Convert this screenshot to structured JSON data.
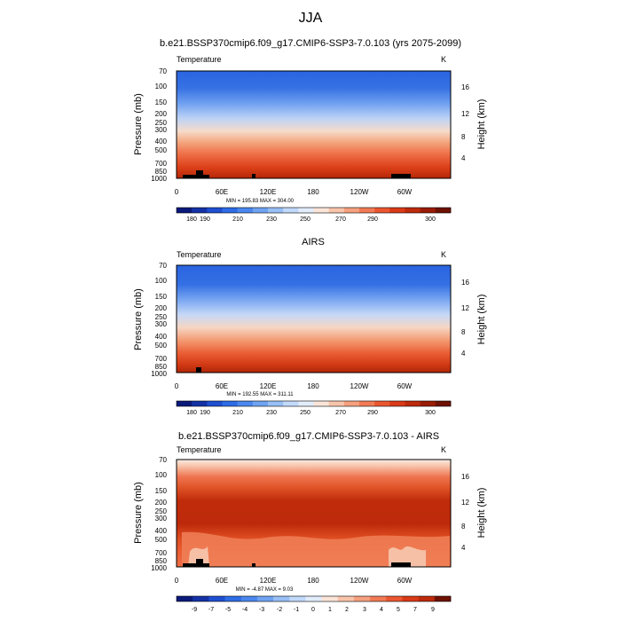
{
  "figure": {
    "title": "JJA"
  },
  "chart_data": [
    {
      "type": "heatmap",
      "title": "b.e21.BSSP370cmip6.f09_g17.CMIP6-SSP3-7.0.103 (yrs 2075-2099)",
      "left_string": "Temperature",
      "right_string": "K",
      "ylabel": "Pressure (mb)",
      "y2label": "Height (km)",
      "x_ticks": [
        "0",
        "60E",
        "120E",
        "180",
        "120W",
        "60W"
      ],
      "y_ticks": [
        "70",
        "100",
        "150",
        "200",
        "250",
        "300",
        "400",
        "500",
        "700",
        "850",
        "1000"
      ],
      "y2_ticks": [
        "16",
        "12",
        "8",
        "4"
      ],
      "stats": "MIN = 195.83   MAX = 304.00",
      "levels": [
        "180",
        "190",
        "210",
        "230",
        "250",
        "270",
        "290",
        "300"
      ],
      "colors": [
        "#0a1a7a",
        "#1432a6",
        "#1e4fd0",
        "#2d6ce6",
        "#4a87ee",
        "#6fa3f2",
        "#98bff6",
        "#c1d9fa",
        "#e2ecfb",
        "#fbe4d8",
        "#f8c4aa",
        "#f5a07e",
        "#f17a55",
        "#ea5630",
        "#d93a17",
        "#bd2a0c",
        "#9a1c05",
        "#6e1102"
      ],
      "field_min": 195.83,
      "field_max": 304.0
    },
    {
      "type": "heatmap",
      "title": "AIRS",
      "left_string": "Temperature",
      "right_string": "K",
      "ylabel": "Pressure (mb)",
      "y2label": "Height (km)",
      "x_ticks": [
        "0",
        "60E",
        "120E",
        "180",
        "120W",
        "60W"
      ],
      "y_ticks": [
        "70",
        "100",
        "150",
        "200",
        "250",
        "300",
        "400",
        "500",
        "700",
        "850",
        "1000"
      ],
      "y2_ticks": [
        "16",
        "12",
        "8",
        "4"
      ],
      "stats": "MIN = 192.55   MAX = 311.11",
      "levels": [
        "180",
        "190",
        "210",
        "230",
        "250",
        "270",
        "290",
        "300"
      ],
      "colors": [
        "#0a1a7a",
        "#1432a6",
        "#1e4fd0",
        "#2d6ce6",
        "#4a87ee",
        "#6fa3f2",
        "#98bff6",
        "#c1d9fa",
        "#e2ecfb",
        "#fbe4d8",
        "#f8c4aa",
        "#f5a07e",
        "#f17a55",
        "#ea5630",
        "#d93a17",
        "#bd2a0c",
        "#9a1c05",
        "#6e1102"
      ],
      "field_min": 192.55,
      "field_max": 311.11
    },
    {
      "type": "heatmap",
      "title": "b.e21.BSSP370cmip6.f09_g17.CMIP6-SSP3-7.0.103 - AIRS",
      "left_string": "Temperature",
      "right_string": "K",
      "ylabel": "Pressure (mb)",
      "y2label": "Height (km)",
      "x_ticks": [
        "0",
        "60E",
        "120E",
        "180",
        "120W",
        "60W"
      ],
      "y_ticks": [
        "70",
        "100",
        "150",
        "200",
        "250",
        "300",
        "400",
        "500",
        "700",
        "850",
        "1000"
      ],
      "y2_ticks": [
        "16",
        "12",
        "8",
        "4"
      ],
      "stats": "MIN = -4.87   MAX =  9.03",
      "levels": [
        "-9",
        "-7",
        "-5",
        "-4",
        "-3",
        "-2",
        "-1",
        "0",
        "1",
        "2",
        "3",
        "4",
        "5",
        "7",
        "9"
      ],
      "colors": [
        "#0a1a7a",
        "#1432a6",
        "#1e4fd0",
        "#2d6ce6",
        "#4a87ee",
        "#6fa3f2",
        "#98bff6",
        "#c1d9fa",
        "#e2ecfb",
        "#fbe4d8",
        "#f8c4aa",
        "#f5a07e",
        "#f17a55",
        "#ea5630",
        "#d93a17",
        "#bd2a0c",
        "#6e1102"
      ],
      "field_min": -4.87,
      "field_max": 9.03
    }
  ]
}
